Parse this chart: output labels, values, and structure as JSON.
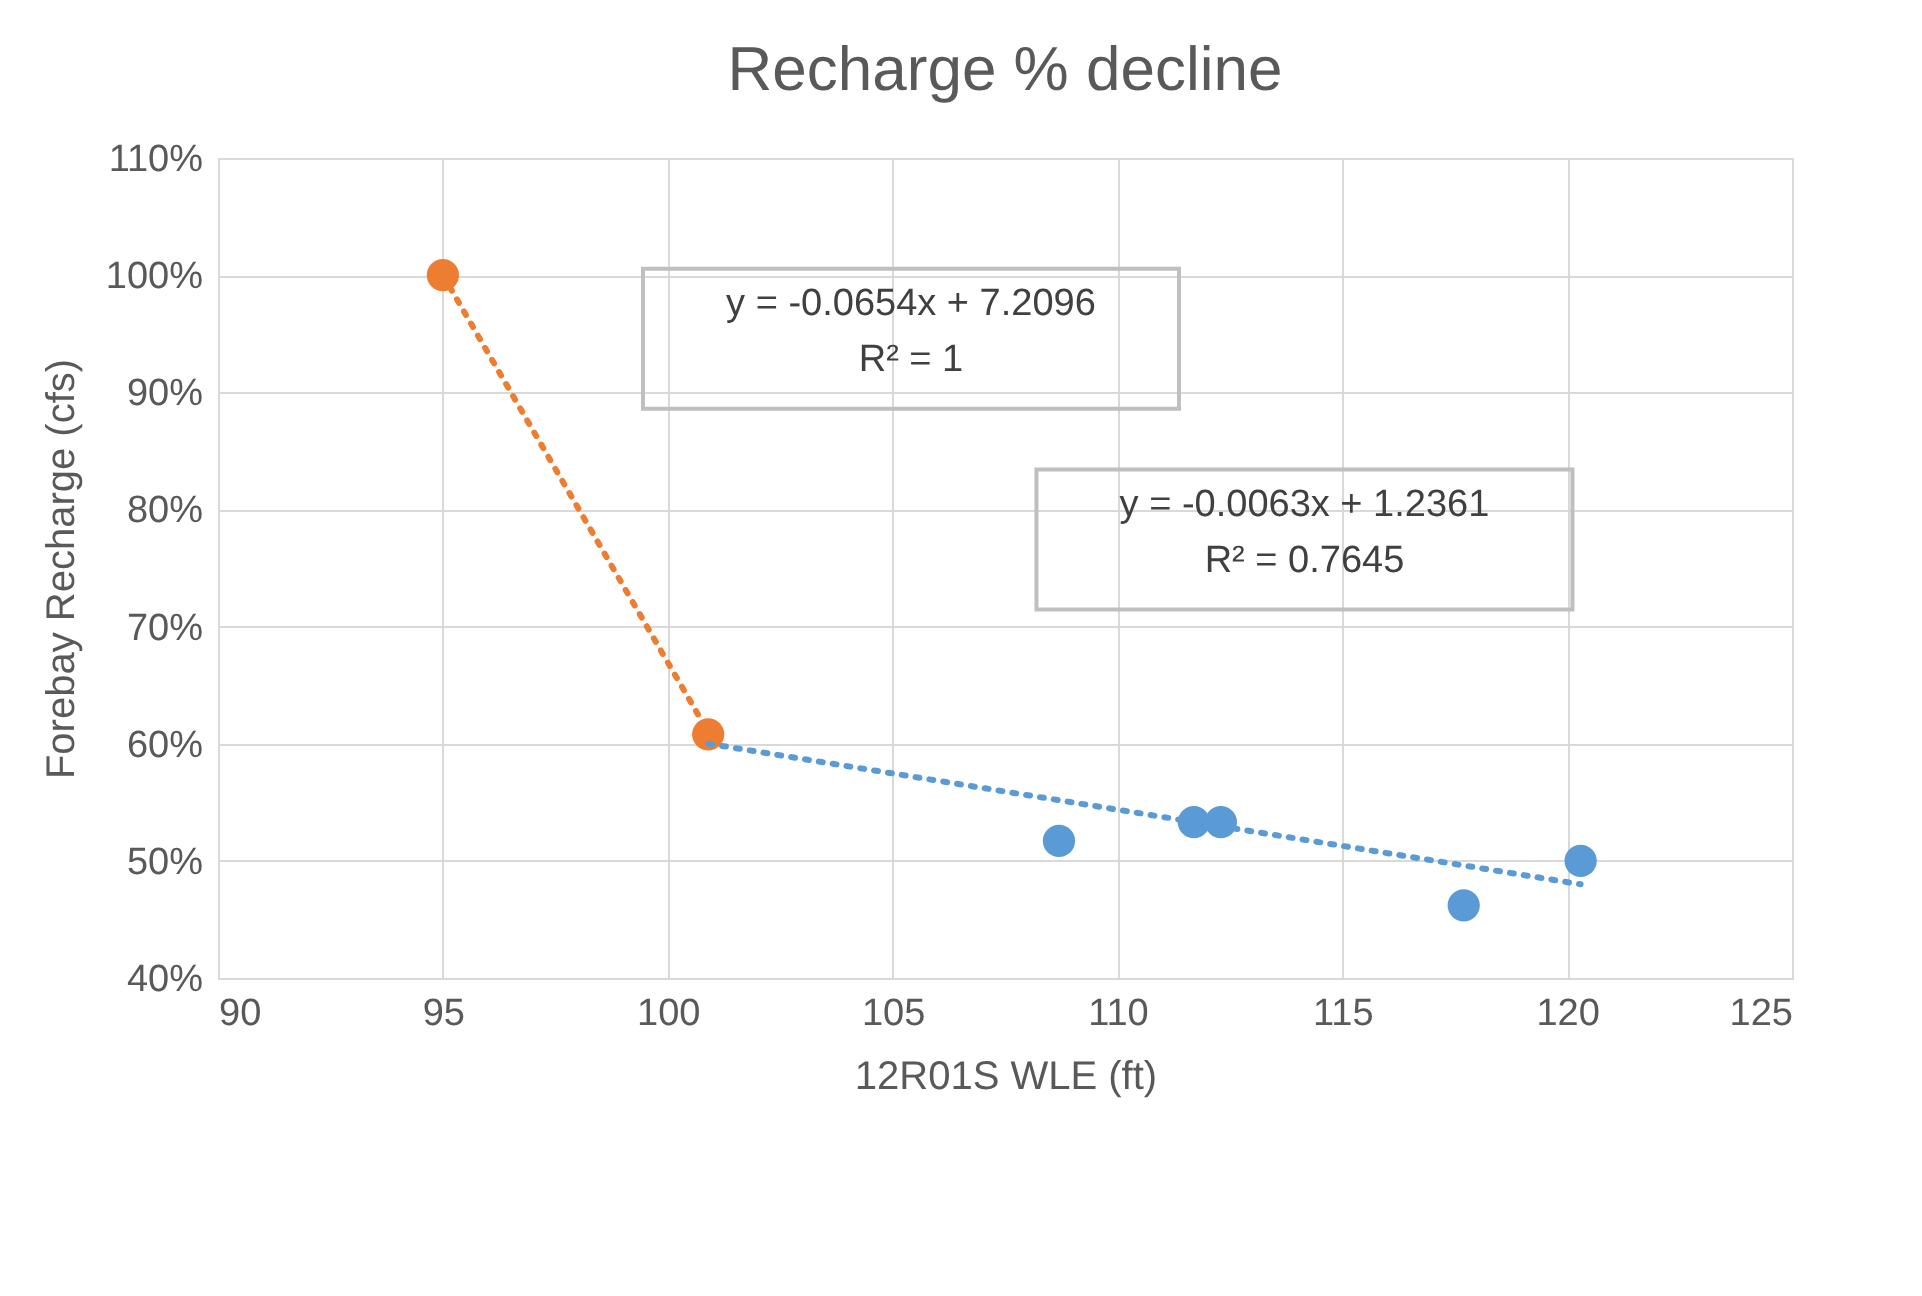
{
  "chart_data": {
    "type": "scatter",
    "title": "Recharge % decline",
    "xlabel": "12R01S WLE (ft)",
    "ylabel": "Forebay Recharge (cfs)",
    "series": [
      {
        "color": "#5b9bd5",
        "marker": "circle",
        "x": [
          108.7,
          111.7,
          112.3,
          117.7,
          120.3
        ],
        "values": [
          51.7,
          53.3,
          53.3,
          46.2,
          50.0
        ]
      },
      {
        "color": "#ed7d31",
        "marker": "circle",
        "x": [
          95,
          100.9
        ],
        "values": [
          100,
          60.8
        ]
      },
      {
        "type": "line",
        "color": "#5b9bd5",
        "line_style": "dotted",
        "marker": "none",
        "x": [
          100.9,
          120.3
        ],
        "values": [
          60,
          48
        ]
      },
      {
        "type": "line",
        "color": "#ed7d31",
        "line_style": "dotted",
        "marker": "none",
        "x": [
          95,
          100.9
        ],
        "values": [
          100,
          61
        ]
      }
    ],
    "xlim": [
      90,
      125
    ],
    "xticks": [
      90,
      95,
      100,
      105,
      110,
      115,
      120,
      125
    ],
    "ylim": [
      40,
      110
    ],
    "yticks": [
      {
        "value": 40,
        "label": "40%"
      },
      {
        "value": 50,
        "label": "50%"
      },
      {
        "value": 60,
        "label": "60%"
      },
      {
        "value": 70,
        "label": "70%"
      },
      {
        "value": 80,
        "label": "80%"
      },
      {
        "value": 90,
        "label": "90%"
      },
      {
        "value": 100,
        "label": "100%"
      },
      {
        "value": 110,
        "label": "110%"
      }
    ],
    "grid": true,
    "annotations": [
      "y = -0.0654x + 7.2096\nR² = 1",
      "y = -0.0063x + 1.2361\nR² = 0.7645"
    ]
  }
}
